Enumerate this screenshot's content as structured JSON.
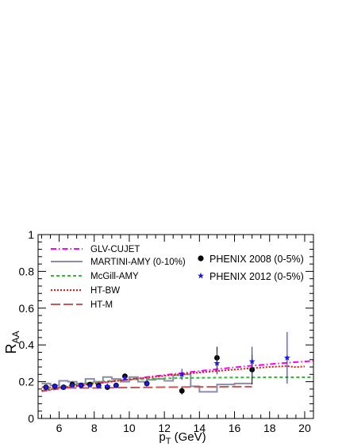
{
  "chart_data": {
    "type": "line",
    "title": "",
    "xlabel_main": "p",
    "xlabel_sub": "T",
    "xlabel_unit": " (GeV)",
    "ylabel_main": "R",
    "ylabel_sub": "AA",
    "xlim": [
      4.8,
      20.5
    ],
    "ylim": [
      0,
      1
    ],
    "x_ticks": [
      6,
      8,
      10,
      12,
      14,
      16,
      18,
      20
    ],
    "y_ticks": [
      0,
      0.2,
      0.4,
      0.6,
      0.8,
      1
    ],
    "y_tick_labels": [
      "0",
      "0.2",
      "0.4",
      "0.6",
      "0.8",
      "1"
    ],
    "legend_position": "top-left and top-right",
    "grid": false,
    "series": [
      {
        "name": "GLV-CUJET",
        "kind": "curve",
        "color": "#ff00ff",
        "dash": "7 3 1.5 3",
        "x": [
          5,
          6,
          7,
          8,
          9,
          10,
          11,
          12,
          13,
          14,
          15,
          16,
          17,
          18,
          19,
          20,
          20.5
        ],
        "y": [
          0.148,
          0.162,
          0.176,
          0.189,
          0.201,
          0.213,
          0.225,
          0.236,
          0.247,
          0.258,
          0.268,
          0.278,
          0.287,
          0.295,
          0.303,
          0.31,
          0.313
        ]
      },
      {
        "name": "MARTINI-AMY (0-10%)",
        "kind": "step",
        "color": "#8c8ca8",
        "edges": [
          5,
          5.5,
          6,
          6.5,
          7,
          7.5,
          8,
          8.5,
          9,
          9.5,
          10,
          10.5,
          11,
          11.5,
          12,
          12.5,
          13,
          13.5,
          14,
          15,
          16,
          17
        ],
        "y": [
          0.19,
          0.18,
          0.205,
          0.2,
          0.19,
          0.215,
          0.2,
          0.225,
          0.215,
          0.2,
          0.225,
          0.2,
          0.21,
          0.215,
          0.205,
          0.235,
          0.24,
          0.175,
          0.145,
          0.185,
          0.19
        ]
      },
      {
        "name": "McGill-AMY",
        "kind": "curve",
        "color": "#33bb33",
        "dash": "4 3",
        "x": [
          5,
          6,
          7,
          8,
          9,
          10,
          11,
          12,
          13,
          14,
          15,
          16,
          17,
          18,
          19,
          20,
          20.5
        ],
        "y": [
          0.15,
          0.17,
          0.185,
          0.197,
          0.205,
          0.211,
          0.215,
          0.218,
          0.22,
          0.221,
          0.222,
          0.223,
          0.223,
          0.224,
          0.224,
          0.224,
          0.224
        ]
      },
      {
        "name": "HT-BW",
        "kind": "curve",
        "color": "#ee1111",
        "dash": "2 2",
        "x": [
          5,
          6,
          7,
          8,
          9,
          10,
          11,
          12,
          13,
          14,
          15,
          16,
          17,
          18,
          19,
          19.5,
          20
        ],
        "y": [
          0.15,
          0.165,
          0.178,
          0.19,
          0.201,
          0.212,
          0.222,
          0.232,
          0.241,
          0.25,
          0.258,
          0.266,
          0.274,
          0.28,
          0.285,
          0.279,
          0.283
        ]
      },
      {
        "name": "HT-M",
        "kind": "curve",
        "color": "#cc5555",
        "dash": "12 4",
        "x": [
          5,
          6,
          7,
          8,
          9,
          10,
          11,
          12,
          13,
          14,
          15,
          16,
          17
        ],
        "y": [
          0.17,
          0.167,
          0.166,
          0.166,
          0.167,
          0.168,
          0.169,
          0.17,
          0.171,
          0.172,
          0.172,
          0.173,
          0.173
        ]
      },
      {
        "name": "PHENIX 2008 (0-5%)",
        "kind": "points",
        "marker": "circle",
        "color": "#000000",
        "x": [
          5.25,
          5.75,
          6.25,
          6.75,
          7.25,
          7.75,
          8.25,
          8.75,
          9.25,
          9.75,
          11,
          13,
          15,
          17
        ],
        "y": [
          0.17,
          0.175,
          0.17,
          0.185,
          0.18,
          0.185,
          0.18,
          0.17,
          0.18,
          0.23,
          0.19,
          0.15,
          0.33,
          0.265
        ],
        "err": [
          0.01,
          0.01,
          0.01,
          0.01,
          0.01,
          0.01,
          0.01,
          0.01,
          0.01,
          0.01,
          0.015,
          0.02,
          0.06,
          0.08
        ]
      },
      {
        "name": "PHENIX 2012 (0-5%)",
        "kind": "points",
        "marker": "star",
        "color": "#1a1aee",
        "x": [
          5.25,
          5.75,
          6.25,
          6.75,
          7.25,
          7.75,
          8.25,
          8.75,
          9.25,
          9.75,
          11,
          13,
          15,
          17,
          19
        ],
        "y": [
          0.17,
          0.175,
          0.17,
          0.18,
          0.18,
          0.18,
          0.175,
          0.175,
          0.18,
          0.22,
          0.19,
          0.24,
          0.3,
          0.31,
          0.33
        ],
        "err": [
          0.01,
          0.01,
          0.01,
          0.01,
          0.01,
          0.01,
          0.01,
          0.01,
          0.01,
          0.01,
          0.015,
          0.03,
          0.06,
          0.08,
          0.14
        ]
      }
    ],
    "legend_left": [
      "GLV-CUJET",
      "MARTINI-AMY (0-10%)",
      "McGill-AMY",
      "HT-BW",
      "HT-M"
    ],
    "legend_right": [
      "PHENIX 2008 (0-5%)",
      "PHENIX 2012 (0-5%)"
    ]
  }
}
